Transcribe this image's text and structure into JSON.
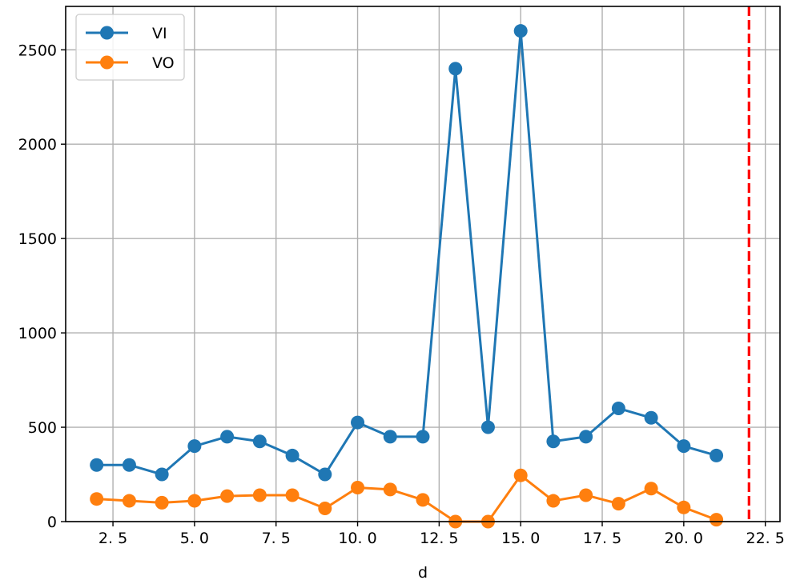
{
  "chart_data": {
    "type": "line",
    "title": "",
    "xlabel": "d",
    "ylabel": "",
    "xlim": [
      1.05,
      22.95
    ],
    "ylim": [
      0,
      2730
    ],
    "xticks": [
      2.5,
      5.0,
      7.5,
      10.0,
      12.5,
      15.0,
      17.5,
      20.0,
      22.5
    ],
    "xtick_labels": [
      "2. 5",
      "5. 0",
      "7. 5",
      "10. 0",
      "12. 5",
      "15. 0",
      "17. 5",
      "20. 0",
      "22. 5"
    ],
    "yticks": [
      0,
      500,
      1000,
      1500,
      2000,
      2500
    ],
    "ytick_labels": [
      "0",
      "500",
      "1000",
      "1500",
      "2000",
      "2500"
    ],
    "grid": true,
    "legend_position": "upper-left",
    "x": [
      2,
      3,
      4,
      5,
      6,
      7,
      8,
      9,
      10,
      11,
      12,
      13,
      14,
      15,
      16,
      17,
      18,
      19,
      20,
      21
    ],
    "series": [
      {
        "name": "VI",
        "color": "#1f77b4",
        "values": [
          300,
          300,
          250,
          400,
          450,
          425,
          350,
          250,
          525,
          450,
          450,
          2400,
          500,
          2600,
          425,
          450,
          600,
          550,
          400,
          350
        ]
      },
      {
        "name": "VO",
        "color": "#ff7f0e",
        "values": [
          120,
          110,
          100,
          110,
          135,
          140,
          140,
          70,
          180,
          170,
          115,
          0,
          0,
          245,
          110,
          140,
          95,
          175,
          75,
          10
        ]
      }
    ],
    "vline": {
      "x": 22,
      "color": "#ff0000",
      "style": "dashed"
    }
  }
}
